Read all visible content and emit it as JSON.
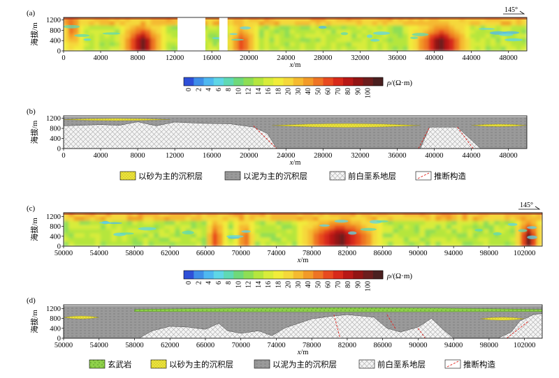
{
  "chart_data": [
    {
      "panel": "(a)",
      "type": "heatmap",
      "quantity": "resistivity",
      "xlabel": "x/m",
      "ylabel": "海拔/m",
      "xlim": [
        0,
        50000
      ],
      "ylim": [
        0,
        1300
      ],
      "xticks": [
        0,
        4000,
        8000,
        12000,
        16000,
        20000,
        24000,
        28000,
        32000,
        36000,
        40000,
        44000,
        48000
      ],
      "yticks": [
        0,
        400,
        800,
        1200
      ],
      "azimuth_label": "145°",
      "data_gaps_x": [
        [
          12300,
          15300
        ],
        [
          16800,
          17700
        ]
      ],
      "high_resistivity_bodies": [
        {
          "x_range": [
            0,
            2000
          ],
          "depth": "upper",
          "level": "high"
        },
        {
          "x_range": [
            6000,
            11000
          ],
          "depth": "deep",
          "level": "very high"
        },
        {
          "x_range": [
            17700,
            21000
          ],
          "depth": "deep",
          "level": "high"
        },
        {
          "x_range": [
            37500,
            44000
          ],
          "depth": "deep",
          "level": "very high"
        }
      ]
    },
    {
      "panel": "colorbar-1",
      "type": "colorbar",
      "label": "ρ/(Ω·m)",
      "ticks": [
        "0",
        "2",
        "4",
        "6",
        "8",
        "10",
        "12",
        "14",
        "16",
        "18",
        "20",
        "30",
        "40",
        "50",
        "60",
        "70",
        "80",
        "90",
        "100"
      ],
      "colors": [
        "#2e4fd8",
        "#3f8ee8",
        "#4fb8f0",
        "#5fd6e6",
        "#5fd9b4",
        "#6fd97a",
        "#8ede54",
        "#b5e63e",
        "#d8ec3a",
        "#f1ec3a",
        "#f5d83a",
        "#f5ba30",
        "#f29a28",
        "#ee7424",
        "#e84a1f",
        "#d82a1a",
        "#b81816",
        "#921414",
        "#6c1d1d",
        "#4a2020"
      ]
    },
    {
      "panel": "(b)",
      "type": "geologic-section",
      "xlabel": "x/m",
      "ylabel": "海拔/m",
      "xlim": [
        0,
        50000
      ],
      "ylim": [
        0,
        1300
      ],
      "xticks": [
        0,
        4000,
        8000,
        12000,
        16000,
        20000,
        24000,
        28000,
        32000,
        36000,
        40000,
        44000,
        48000
      ],
      "yticks": [
        0,
        400,
        800,
        1200
      ],
      "precambrian_top": [
        [
          0,
          900
        ],
        [
          4000,
          950
        ],
        [
          6000,
          920
        ],
        [
          8000,
          1060
        ],
        [
          10000,
          900
        ],
        [
          12000,
          1050
        ],
        [
          15000,
          1000
        ],
        [
          18000,
          980
        ],
        [
          20500,
          850
        ],
        [
          22000,
          600
        ],
        [
          23000,
          0
        ],
        [
          38500,
          0
        ],
        [
          39500,
          850
        ],
        [
          42500,
          850
        ],
        [
          45000,
          0
        ]
      ],
      "sand_layers": [
        {
          "x_range": [
            0,
            11500
          ],
          "top": 1180,
          "bottom": 1120
        },
        {
          "x_range": [
            22500,
            38500
          ],
          "top": 1010,
          "bottom": 820
        },
        {
          "x_range": [
            44000,
            50000
          ],
          "top": 960,
          "bottom": 880
        }
      ],
      "faults": [
        [
          [
            20500,
            900
          ],
          [
            23000,
            0
          ]
        ],
        [
          [
            38300,
            0
          ],
          [
            39500,
            850
          ]
        ],
        [
          [
            42500,
            850
          ],
          [
            44200,
            0
          ]
        ]
      ]
    },
    {
      "panel": "legend-1",
      "type": "legend",
      "entries": [
        "以砂为主的沉积层",
        "以泥为主的沉积层",
        "前白垩系地层",
        "推断构造"
      ]
    },
    {
      "panel": "(c)",
      "type": "heatmap",
      "quantity": "resistivity",
      "xlabel": "x/m",
      "ylabel": "海拔/m",
      "xlim": [
        50000,
        104000
      ],
      "ylim": [
        0,
        1350
      ],
      "xticks": [
        50000,
        54000,
        58000,
        62000,
        66000,
        70000,
        74000,
        78000,
        82000,
        86000,
        90000,
        94000,
        98000,
        102000
      ],
      "yticks": [
        0,
        400,
        800,
        1200
      ],
      "azimuth_label": "145°",
      "high_resistivity_bodies": [
        {
          "x_range": [
            66000,
            68500
          ],
          "depth": "deep",
          "level": "high"
        },
        {
          "x_range": [
            69500,
            71500
          ],
          "depth": "deep",
          "level": "high"
        },
        {
          "x_range": [
            76500,
            86000
          ],
          "depth": "deep",
          "level": "very high"
        },
        {
          "x_range": [
            101000,
            104000
          ],
          "depth": "deep",
          "level": "very high"
        }
      ]
    },
    {
      "panel": "colorbar-2",
      "type": "colorbar",
      "label": "ρ/(Ω·m)",
      "ticks": [
        "0",
        "2",
        "4",
        "6",
        "8",
        "10",
        "12",
        "14",
        "16",
        "18",
        "20",
        "30",
        "40",
        "50",
        "60",
        "70",
        "80",
        "90",
        "100"
      ]
    },
    {
      "panel": "(d)",
      "type": "geologic-section",
      "xlabel": "x/m",
      "ylabel": "海拔/m",
      "xlim": [
        50000,
        104000
      ],
      "ylim": [
        0,
        1350
      ],
      "xticks": [
        50000,
        54000,
        58000,
        62000,
        66000,
        70000,
        74000,
        78000,
        82000,
        86000,
        90000,
        94000,
        98000,
        102000
      ],
      "yticks": [
        0,
        400,
        800,
        1200
      ],
      "precambrian_top": [
        [
          58500,
          0
        ],
        [
          60000,
          300
        ],
        [
          62000,
          480
        ],
        [
          64000,
          450
        ],
        [
          66000,
          360
        ],
        [
          67500,
          600
        ],
        [
          68500,
          300
        ],
        [
          70000,
          200
        ],
        [
          72000,
          300
        ],
        [
          73500,
          100
        ],
        [
          75000,
          420
        ],
        [
          78000,
          780
        ],
        [
          80000,
          880
        ],
        [
          82000,
          950
        ],
        [
          85000,
          850
        ],
        [
          86500,
          400
        ],
        [
          88000,
          250
        ],
        [
          90000,
          450
        ],
        [
          91500,
          800
        ],
        [
          93000,
          300
        ],
        [
          94000,
          0
        ],
        [
          99000,
          0
        ],
        [
          100500,
          250
        ],
        [
          101500,
          700
        ],
        [
          103000,
          950
        ],
        [
          104000,
          1000
        ]
      ],
      "basalt_layer": {
        "x_range": [
          58000,
          104000
        ],
        "top": 1250,
        "bottom": 1160
      },
      "sand_layers": [
        {
          "x_range": [
            50000,
            54000
          ],
          "top": 900,
          "bottom": 780
        },
        {
          "x_range": [
            97000,
            102000
          ],
          "top": 850,
          "bottom": 720
        }
      ],
      "faults": [
        [
          [
            80500,
            950
          ],
          [
            81200,
            0
          ]
        ],
        [
          [
            86500,
            950
          ],
          [
            87500,
            350
          ]
        ],
        [
          [
            90000,
            400
          ],
          [
            90800,
            0
          ]
        ],
        [
          [
            100000,
            0
          ],
          [
            102500,
            700
          ]
        ]
      ]
    },
    {
      "panel": "legend-2",
      "type": "legend",
      "entries": [
        "玄武岩",
        "以砂为主的沉积层",
        "以泥为主的沉积层",
        "前白垩系地层",
        "推断构造"
      ]
    }
  ],
  "panels": {
    "a": {
      "tag": "(a)",
      "ylabel": "海拔/m",
      "xlabel_italic": "x",
      "xlabel_unit": "/m",
      "azimuth": "145°"
    },
    "b": {
      "tag": "(b)",
      "ylabel": "海拔/m",
      "xlabel_italic": "x",
      "xlabel_unit": "/m"
    },
    "c": {
      "tag": "(c)",
      "ylabel": "海拔/m",
      "xlabel_italic": "x",
      "xlabel_unit": "/m",
      "azimuth": "145°"
    },
    "d": {
      "tag": "(d)",
      "ylabel": "海拔/m",
      "xlabel_italic": "x",
      "xlabel_unit": "/m"
    }
  },
  "colorbar_label_rho": "ρ",
  "colorbar_label_unit": "/(Ω·m)",
  "legend1": [
    "以砂为主的沉积层",
    "以泥为主的沉积层",
    "前白垩系地层",
    "推断构造"
  ],
  "legend2": [
    "玄武岩",
    "以砂为主的沉积层",
    "以泥为主的沉积层",
    "前白垩系地层",
    "推断构造"
  ]
}
